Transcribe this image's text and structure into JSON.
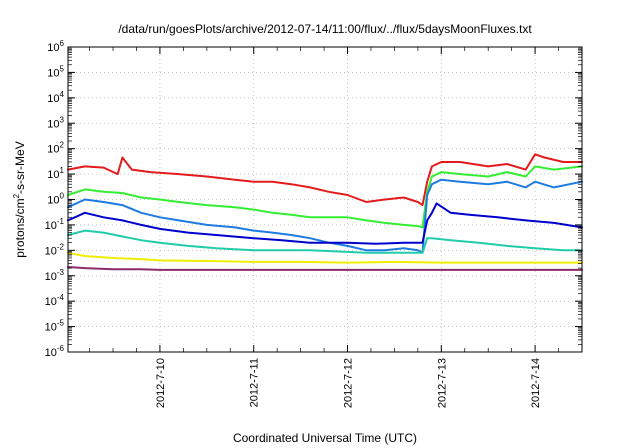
{
  "chart_data": {
    "type": "line",
    "title": "/data/run/goesPlots/archive/2012-07-14/11:00/flux/../flux/5daysMoonFluxes.txt",
    "xlabel": "Coordinated Universal Time (UTC)",
    "ylabel_parts": {
      "before": "protons/cm",
      "sup": "2",
      "after": "-s-sr-MeV"
    },
    "yscale": "log",
    "ylim": [
      1e-06,
      1000000.0
    ],
    "xlim": [
      -0.98,
      4.5
    ],
    "x_unit": "days relative to 2012-7-10 00:00 UTC",
    "grid": true,
    "x_tick_labels": [
      {
        "x": 0,
        "label": "2012-7-10"
      },
      {
        "x": 1,
        "label": "2012-7-11"
      },
      {
        "x": 2,
        "label": "2012-7-12"
      },
      {
        "x": 3,
        "label": "2012-7-13"
      },
      {
        "x": 4,
        "label": "2012-7-14"
      }
    ],
    "y_tick_labels": [
      {
        "exp": -6,
        "base": "10",
        "sup": "-6"
      },
      {
        "exp": -5,
        "base": "10",
        "sup": "-5"
      },
      {
        "exp": -4,
        "base": "10",
        "sup": "-4"
      },
      {
        "exp": -3,
        "base": "10",
        "sup": "-3"
      },
      {
        "exp": -2,
        "base": "10",
        "sup": "-2"
      },
      {
        "exp": -1,
        "base": "10",
        "sup": "-1"
      },
      {
        "exp": 0,
        "base": "10",
        "sup": "0"
      },
      {
        "exp": 1,
        "base": "10",
        "sup": "1"
      },
      {
        "exp": 2,
        "base": "10",
        "sup": "2"
      },
      {
        "exp": 3,
        "base": "10",
        "sup": "3"
      },
      {
        "exp": 4,
        "base": "10",
        "sup": "4"
      },
      {
        "exp": 5,
        "base": "10",
        "sup": "5"
      },
      {
        "exp": 6,
        "base": "10",
        "sup": "6"
      }
    ],
    "series": [
      {
        "color": "#e41a1c",
        "x": [
          -0.98,
          -0.8,
          -0.6,
          -0.45,
          -0.4,
          -0.3,
          -0.1,
          0.2,
          0.5,
          0.8,
          1.0,
          1.2,
          1.4,
          1.6,
          1.8,
          2.0,
          2.2,
          2.4,
          2.6,
          2.75,
          2.8,
          2.85,
          2.9,
          3.0,
          3.2,
          3.5,
          3.7,
          3.9,
          4.0,
          4.1,
          4.3,
          4.5
        ],
        "y": [
          15,
          20,
          18,
          10,
          45,
          15,
          12,
          10,
          8,
          6,
          5,
          5,
          4,
          3,
          2,
          1.5,
          0.8,
          1.0,
          1.2,
          0.8,
          0.6,
          5,
          20,
          30,
          30,
          20,
          25,
          15,
          60,
          45,
          30,
          30
        ]
      },
      {
        "color": "#33ee33",
        "x": [
          -0.98,
          -0.8,
          -0.6,
          -0.4,
          -0.2,
          0.0,
          0.2,
          0.5,
          0.8,
          1.0,
          1.2,
          1.4,
          1.6,
          1.8,
          2.0,
          2.2,
          2.4,
          2.6,
          2.75,
          2.8,
          2.85,
          2.9,
          3.0,
          3.2,
          3.5,
          3.7,
          3.9,
          4.0,
          4.2,
          4.5
        ],
        "y": [
          1.5,
          2.5,
          2.0,
          1.8,
          1.2,
          1.0,
          0.8,
          0.6,
          0.5,
          0.4,
          0.3,
          0.25,
          0.2,
          0.2,
          0.2,
          0.15,
          0.12,
          0.1,
          0.09,
          0.08,
          2.0,
          8,
          12,
          10,
          8,
          12,
          8,
          20,
          15,
          20
        ]
      },
      {
        "color": "#1e7be0",
        "x": [
          -0.98,
          -0.8,
          -0.6,
          -0.4,
          -0.2,
          0.0,
          0.2,
          0.5,
          0.8,
          1.0,
          1.2,
          1.4,
          1.6,
          1.8,
          2.0,
          2.2,
          2.4,
          2.6,
          2.75,
          2.8,
          2.85,
          2.9,
          3.0,
          3.2,
          3.5,
          3.7,
          3.9,
          4.0,
          4.2,
          4.5
        ],
        "y": [
          0.5,
          1.0,
          0.8,
          0.6,
          0.3,
          0.2,
          0.15,
          0.1,
          0.08,
          0.06,
          0.05,
          0.04,
          0.03,
          0.02,
          0.015,
          0.01,
          0.01,
          0.012,
          0.01,
          0.008,
          1.5,
          4,
          6,
          5,
          4,
          5,
          3,
          5,
          3,
          5
        ]
      },
      {
        "color": "#0000cd",
        "x": [
          -0.98,
          -0.8,
          -0.6,
          -0.4,
          -0.2,
          0.0,
          0.3,
          0.6,
          1.0,
          1.3,
          1.6,
          2.0,
          2.3,
          2.6,
          2.8,
          2.85,
          2.9,
          2.95,
          3.1,
          3.3,
          3.6,
          3.9,
          4.2,
          4.5
        ],
        "y": [
          0.15,
          0.3,
          0.2,
          0.15,
          0.1,
          0.07,
          0.05,
          0.04,
          0.03,
          0.025,
          0.02,
          0.02,
          0.018,
          0.02,
          0.02,
          0.15,
          0.3,
          0.7,
          0.3,
          0.25,
          0.2,
          0.15,
          0.12,
          0.08
        ]
      },
      {
        "color": "#22ccaa",
        "x": [
          -0.98,
          -0.8,
          -0.6,
          -0.4,
          -0.2,
          0.0,
          0.3,
          0.6,
          1.0,
          1.3,
          1.6,
          1.9,
          2.2,
          2.5,
          2.7,
          2.8,
          2.85,
          2.9,
          3.1,
          3.4,
          3.7,
          4.0,
          4.3,
          4.5
        ],
        "y": [
          0.04,
          0.06,
          0.05,
          0.035,
          0.025,
          0.02,
          0.015,
          0.012,
          0.01,
          0.01,
          0.01,
          0.009,
          0.008,
          0.008,
          0.008,
          0.008,
          0.03,
          0.03,
          0.025,
          0.02,
          0.015,
          0.012,
          0.01,
          0.01
        ]
      },
      {
        "color": "#eeee00",
        "x": [
          -0.98,
          -0.8,
          -0.5,
          -0.2,
          0.0,
          0.5,
          1.0,
          1.5,
          2.0,
          2.5,
          3.0,
          3.5,
          4.0,
          4.5
        ],
        "y": [
          0.008,
          0.006,
          0.005,
          0.0045,
          0.004,
          0.0038,
          0.0035,
          0.0035,
          0.0033,
          0.0035,
          0.0033,
          0.0033,
          0.0033,
          0.0033
        ]
      },
      {
        "color": "#8b2a6b",
        "x": [
          -0.98,
          -0.8,
          -0.5,
          -0.2,
          0.0,
          0.5,
          1.0,
          1.5,
          2.0,
          2.5,
          3.0,
          3.5,
          4.0,
          4.5
        ],
        "y": [
          0.0022,
          0.002,
          0.0018,
          0.0018,
          0.0017,
          0.0017,
          0.0017,
          0.0017,
          0.0017,
          0.0017,
          0.0017,
          0.0017,
          0.0017,
          0.0017
        ]
      }
    ]
  }
}
